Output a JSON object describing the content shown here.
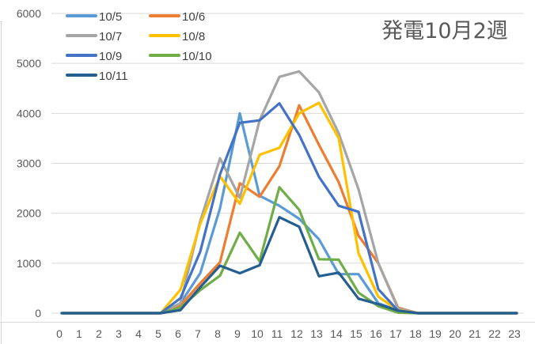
{
  "chart_data": {
    "type": "line",
    "title": "発電10月2週",
    "xlabel": "",
    "ylabel": "",
    "x": [
      0,
      1,
      2,
      3,
      4,
      5,
      6,
      7,
      8,
      9,
      10,
      11,
      12,
      13,
      14,
      15,
      16,
      17,
      18,
      19,
      20,
      21,
      22,
      23
    ],
    "ylim": [
      0,
      6000
    ],
    "yticks": [
      0,
      1000,
      2000,
      3000,
      4000,
      5000,
      6000
    ],
    "grid": true,
    "legend_position": "top-left-inside",
    "series": [
      {
        "name": "10/5",
        "color": "#5B9BD5",
        "values": [
          0,
          0,
          0,
          0,
          0,
          0,
          200,
          800,
          2100,
          4000,
          2350,
          2150,
          1890,
          1480,
          780,
          780,
          200,
          50,
          0,
          0,
          0,
          0,
          0,
          0
        ]
      },
      {
        "name": "10/6",
        "color": "#ED7D31",
        "values": [
          0,
          0,
          0,
          0,
          0,
          0,
          150,
          600,
          1020,
          2600,
          2330,
          2940,
          4160,
          3370,
          2620,
          1550,
          1000,
          110,
          0,
          0,
          0,
          0,
          0,
          0
        ]
      },
      {
        "name": "10/7",
        "color": "#A5A5A5",
        "values": [
          0,
          0,
          0,
          0,
          0,
          0,
          200,
          1840,
          3100,
          2310,
          3860,
          4730,
          4840,
          4420,
          3600,
          2480,
          1000,
          90,
          0,
          0,
          0,
          0,
          0,
          0
        ]
      },
      {
        "name": "10/8",
        "color": "#FFC000",
        "values": [
          0,
          0,
          0,
          0,
          0,
          0,
          470,
          1790,
          2740,
          2190,
          3170,
          3310,
          4000,
          4210,
          3500,
          1200,
          330,
          60,
          0,
          0,
          0,
          0,
          0,
          0
        ]
      },
      {
        "name": "10/9",
        "color": "#4472C4",
        "values": [
          0,
          0,
          0,
          0,
          0,
          0,
          300,
          1230,
          2780,
          3810,
          3860,
          4200,
          3570,
          2730,
          2150,
          2030,
          480,
          50,
          0,
          0,
          0,
          0,
          0,
          0
        ]
      },
      {
        "name": "10/10",
        "color": "#70AD47",
        "values": [
          0,
          0,
          0,
          0,
          0,
          0,
          110,
          460,
          750,
          1610,
          1040,
          2520,
          2070,
          1080,
          1070,
          410,
          140,
          10,
          0,
          0,
          0,
          0,
          0,
          0
        ]
      },
      {
        "name": "10/11",
        "color": "#255E91",
        "values": [
          0,
          0,
          0,
          0,
          0,
          0,
          60,
          520,
          950,
          800,
          960,
          1920,
          1730,
          740,
          810,
          290,
          180,
          50,
          0,
          0,
          0,
          0,
          0,
          0
        ]
      }
    ]
  },
  "colors": {
    "gridline": "#d9d9d9",
    "axis_text": "#595959",
    "title_text": "#595959"
  }
}
